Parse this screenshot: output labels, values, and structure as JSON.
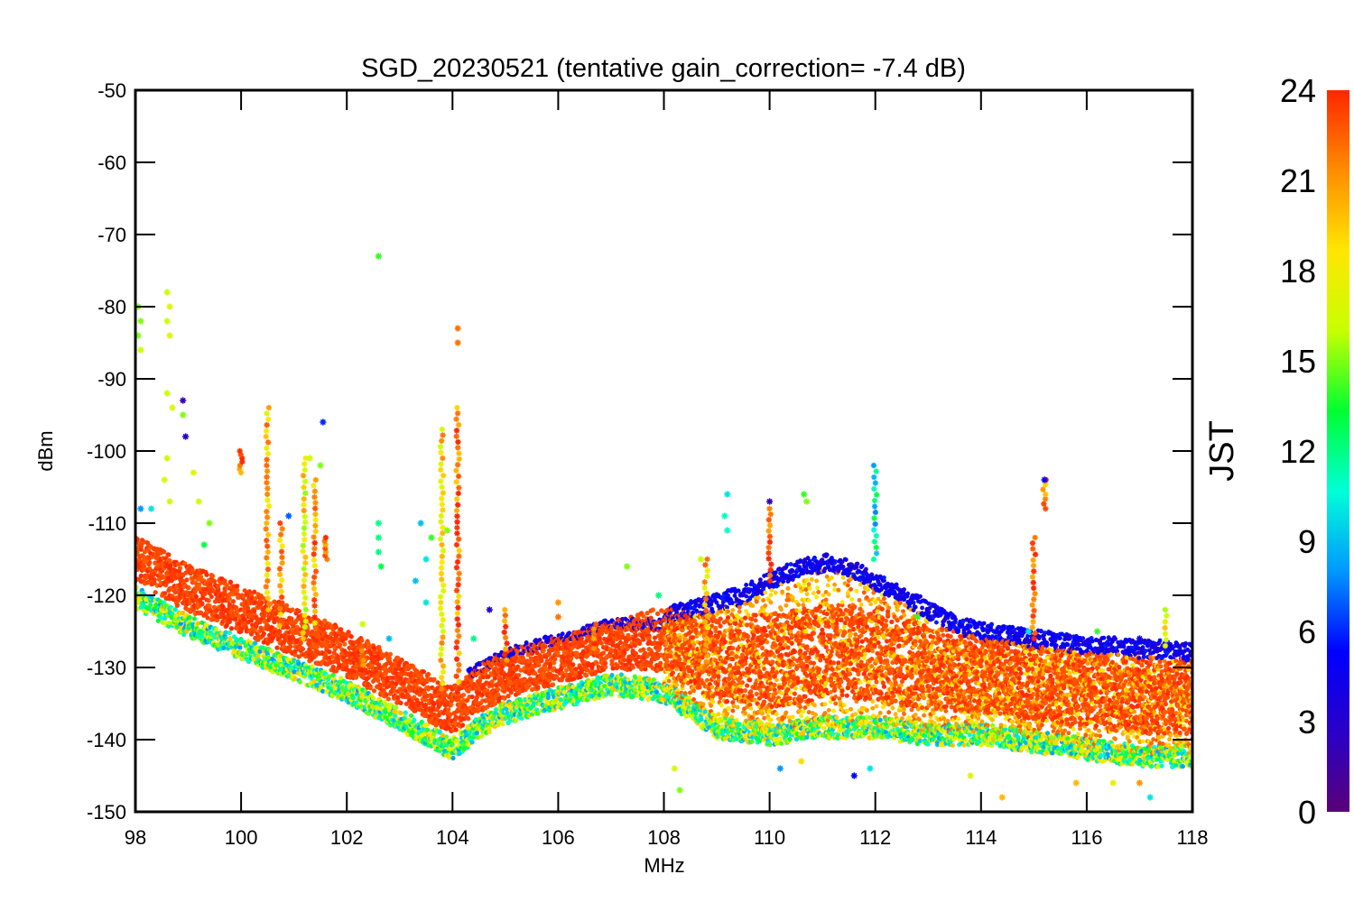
{
  "chart_data": {
    "type": "scatter",
    "title": "SGD_20230521 (tentative gain_correction= -7.4 dB)",
    "xlabel": "MHz",
    "ylabel": "dBm",
    "xlim": [
      98,
      118
    ],
    "ylim": [
      -150,
      -50
    ],
    "xticks": [
      "98",
      "100",
      "102",
      "104",
      "106",
      "108",
      "110",
      "112",
      "114",
      "116",
      "118"
    ],
    "yticks": [
      "-50",
      "-60",
      "-70",
      "-80",
      "-90",
      "-100",
      "-110",
      "-120",
      "-130",
      "-140",
      "-150"
    ],
    "grid": false,
    "marker": "asterisk",
    "colorbar": {
      "label": "JST",
      "range": [
        0,
        24
      ],
      "ticks": [
        "0",
        "3",
        "6",
        "9",
        "12",
        "15",
        "18",
        "21",
        "24"
      ],
      "colormap": "rainbow",
      "stops": [
        "#5a0078",
        "#2a00c8",
        "#0000ff",
        "#0098ff",
        "#00ffd8",
        "#00ff30",
        "#c8ff00",
        "#ffe600",
        "#ff8c00",
        "#ff2600"
      ]
    },
    "noise_floor": {
      "x": [
        98,
        99,
        100,
        101,
        102,
        103,
        103.5,
        104,
        104.5,
        105,
        106,
        107,
        108,
        109,
        110,
        111,
        112,
        113,
        114,
        115,
        116,
        117,
        118
      ],
      "y_center": [
        -115,
        -119,
        -122,
        -125,
        -128,
        -132,
        -134,
        -136,
        -133,
        -131,
        -129,
        -127,
        -126,
        -129,
        -129,
        -128,
        -128,
        -130,
        -131,
        -132,
        -133,
        -134,
        -134
      ],
      "y_spread": [
        5,
        5,
        5,
        5,
        5,
        5,
        5,
        5,
        5,
        5,
        5,
        5,
        7,
        9,
        10,
        10,
        10,
        9,
        8,
        8,
        8,
        8,
        8
      ]
    },
    "upper_envelope_early": {
      "x": [
        104.3,
        105,
        106,
        106.5,
        107,
        107.5,
        108
      ],
      "y": [
        -131,
        -128,
        -126,
        -125,
        -124,
        -124,
        -124
      ]
    },
    "hump_envelope": {
      "x": [
        108,
        108.5,
        109,
        109.5,
        110,
        110.5,
        111,
        111.5,
        112,
        112.5,
        113,
        113.5,
        114,
        114.5,
        115,
        115.5,
        116,
        116.5,
        117,
        117.5,
        118
      ],
      "y": [
        -123,
        -122,
        -121,
        -120,
        -118,
        -116.5,
        -115.5,
        -116,
        -118,
        -120,
        -122,
        -124,
        -125,
        -125.5,
        -126,
        -126.5,
        -127,
        -127,
        -127.5,
        -127.5,
        -128
      ]
    },
    "signal_columns": [
      {
        "x": 100.0,
        "y_top": -100,
        "y_bottom": -103,
        "hue": 23
      },
      {
        "x": 100.5,
        "y_top": -94,
        "y_bottom": -122,
        "hue": 20
      },
      {
        "x": 100.75,
        "y_top": -110,
        "y_bottom": -125,
        "hue": 21
      },
      {
        "x": 101.2,
        "y_top": -101,
        "y_bottom": -126,
        "hue": 18
      },
      {
        "x": 101.4,
        "y_top": -104,
        "y_bottom": -127,
        "hue": 21
      },
      {
        "x": 101.6,
        "y_top": -112,
        "y_bottom": -115,
        "hue": 23
      },
      {
        "x": 102.3,
        "y_top": -127,
        "y_bottom": -131,
        "hue": 23
      },
      {
        "x": 103.8,
        "y_top": -97,
        "y_bottom": -133,
        "hue": 19
      },
      {
        "x": 104.1,
        "y_top": -94,
        "y_bottom": -132,
        "hue": 22
      },
      {
        "x": 105.0,
        "y_top": -122,
        "y_bottom": -129,
        "hue": 23
      },
      {
        "x": 106.7,
        "y_top": -124,
        "y_bottom": -128,
        "hue": 23
      },
      {
        "x": 108.8,
        "y_top": -115,
        "y_bottom": -130,
        "hue": 20
      },
      {
        "x": 110.0,
        "y_top": -108,
        "y_bottom": -118,
        "hue": 23
      },
      {
        "x": 112.0,
        "y_top": -102,
        "y_bottom": -115,
        "hue": 10
      },
      {
        "x": 115.0,
        "y_top": -112,
        "y_bottom": -126,
        "hue": 23
      },
      {
        "x": 115.2,
        "y_top": -104,
        "y_bottom": -108,
        "hue": 22
      },
      {
        "x": 117.5,
        "y_top": -122,
        "y_bottom": -127,
        "hue": 18
      }
    ],
    "outliers": [
      {
        "x": 98.05,
        "y": -80,
        "hue": 15
      },
      {
        "x": 98.1,
        "y": -82,
        "hue": 15
      },
      {
        "x": 98.05,
        "y": -84,
        "hue": 15
      },
      {
        "x": 98.1,
        "y": -86,
        "hue": 16
      },
      {
        "x": 98.6,
        "y": -78,
        "hue": 16
      },
      {
        "x": 98.65,
        "y": -80,
        "hue": 17
      },
      {
        "x": 98.6,
        "y": -82,
        "hue": 16
      },
      {
        "x": 98.65,
        "y": -84,
        "hue": 17
      },
      {
        "x": 98.6,
        "y": -92,
        "hue": 16
      },
      {
        "x": 98.7,
        "y": -94,
        "hue": 17
      },
      {
        "x": 98.9,
        "y": -93,
        "hue": 2
      },
      {
        "x": 98.9,
        "y": -95,
        "hue": 15
      },
      {
        "x": 98.95,
        "y": -98,
        "hue": 3
      },
      {
        "x": 98.6,
        "y": -101,
        "hue": 16
      },
      {
        "x": 98.55,
        "y": -104,
        "hue": 17
      },
      {
        "x": 98.65,
        "y": -107,
        "hue": 16
      },
      {
        "x": 98.1,
        "y": -108,
        "hue": 8
      },
      {
        "x": 98.3,
        "y": -108,
        "hue": 10
      },
      {
        "x": 99.1,
        "y": -103,
        "hue": 17
      },
      {
        "x": 99.2,
        "y": -107,
        "hue": 16
      },
      {
        "x": 99.4,
        "y": -110,
        "hue": 15
      },
      {
        "x": 99.3,
        "y": -113,
        "hue": 13
      },
      {
        "x": 102.6,
        "y": -73,
        "hue": 14
      },
      {
        "x": 101.55,
        "y": -96,
        "hue": 6
      },
      {
        "x": 100.9,
        "y": -109,
        "hue": 7
      },
      {
        "x": 101.5,
        "y": -102,
        "hue": 15
      },
      {
        "x": 101.3,
        "y": -101,
        "hue": 16
      },
      {
        "x": 102.6,
        "y": -110,
        "hue": 12
      },
      {
        "x": 102.6,
        "y": -112,
        "hue": 12
      },
      {
        "x": 102.6,
        "y": -114,
        "hue": 12
      },
      {
        "x": 102.65,
        "y": -116,
        "hue": 13
      },
      {
        "x": 102.3,
        "y": -124,
        "hue": 16
      },
      {
        "x": 102.8,
        "y": -126,
        "hue": 9
      },
      {
        "x": 103.4,
        "y": -110,
        "hue": 9
      },
      {
        "x": 103.5,
        "y": -115,
        "hue": 10
      },
      {
        "x": 103.3,
        "y": -118,
        "hue": 9
      },
      {
        "x": 103.5,
        "y": -121,
        "hue": 10
      },
      {
        "x": 103.6,
        "y": -112,
        "hue": 14
      },
      {
        "x": 103.9,
        "y": -111,
        "hue": 15
      },
      {
        "x": 104.1,
        "y": -83,
        "hue": 22
      },
      {
        "x": 104.1,
        "y": -85,
        "hue": 22
      },
      {
        "x": 104.4,
        "y": -126,
        "hue": 12
      },
      {
        "x": 104.7,
        "y": -122,
        "hue": 3
      },
      {
        "x": 106.0,
        "y": -121,
        "hue": 21
      },
      {
        "x": 106.0,
        "y": -123,
        "hue": 22
      },
      {
        "x": 107.3,
        "y": -116,
        "hue": 15
      },
      {
        "x": 107.9,
        "y": -120,
        "hue": 12
      },
      {
        "x": 108.7,
        "y": -115,
        "hue": 16
      },
      {
        "x": 109.2,
        "y": -106,
        "hue": 10
      },
      {
        "x": 109.15,
        "y": -109,
        "hue": 11
      },
      {
        "x": 109.2,
        "y": -111,
        "hue": 11
      },
      {
        "x": 110.65,
        "y": -106,
        "hue": 14
      },
      {
        "x": 110.7,
        "y": -107,
        "hue": 15
      },
      {
        "x": 110.0,
        "y": -107,
        "hue": 2
      },
      {
        "x": 115.2,
        "y": -104,
        "hue": 5
      },
      {
        "x": 108.3,
        "y": -147,
        "hue": 15
      },
      {
        "x": 108.2,
        "y": -144,
        "hue": 17
      },
      {
        "x": 110.2,
        "y": -144,
        "hue": 8
      },
      {
        "x": 110.6,
        "y": -143,
        "hue": 19
      },
      {
        "x": 111.6,
        "y": -145,
        "hue": 5
      },
      {
        "x": 111.9,
        "y": -144,
        "hue": 10
      },
      {
        "x": 114.4,
        "y": -148,
        "hue": 20
      },
      {
        "x": 115.8,
        "y": -146,
        "hue": 20
      },
      {
        "x": 117.2,
        "y": -148,
        "hue": 10
      },
      {
        "x": 117.0,
        "y": -146,
        "hue": 21
      },
      {
        "x": 116.5,
        "y": -146,
        "hue": 18
      },
      {
        "x": 113.8,
        "y": -145,
        "hue": 17
      },
      {
        "x": 112.8,
        "y": -123,
        "hue": 14
      },
      {
        "x": 114.9,
        "y": -125,
        "hue": 10
      },
      {
        "x": 116.2,
        "y": -125,
        "hue": 14
      },
      {
        "x": 117.0,
        "y": -126,
        "hue": 4
      }
    ]
  }
}
